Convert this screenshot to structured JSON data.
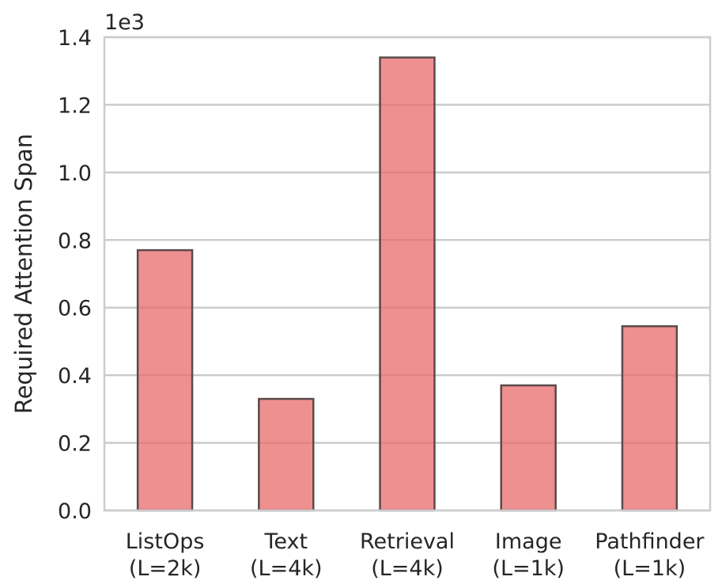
{
  "chart_data": {
    "type": "bar",
    "categories": [
      [
        "ListOps",
        "(L=2k)"
      ],
      [
        "Text",
        "(L=4k)"
      ],
      [
        "Retrieval",
        "(L=4k)"
      ],
      [
        "Image",
        "(L=1k)"
      ],
      [
        "Pathfinder",
        "(L=1k)"
      ]
    ],
    "values": [
      0.77,
      0.33,
      1.34,
      0.37,
      0.545
    ],
    "ylabel": "Required Attention Span",
    "y_offset_label": "1e3",
    "ylim": [
      0,
      1.4
    ],
    "yticks": [
      "0.0",
      "0.2",
      "0.4",
      "0.6",
      "0.8",
      "1.0",
      "1.2",
      "1.4"
    ],
    "grid": true,
    "bar_color": "#e8696b",
    "bar_edge_color": "#5b4a4a"
  }
}
